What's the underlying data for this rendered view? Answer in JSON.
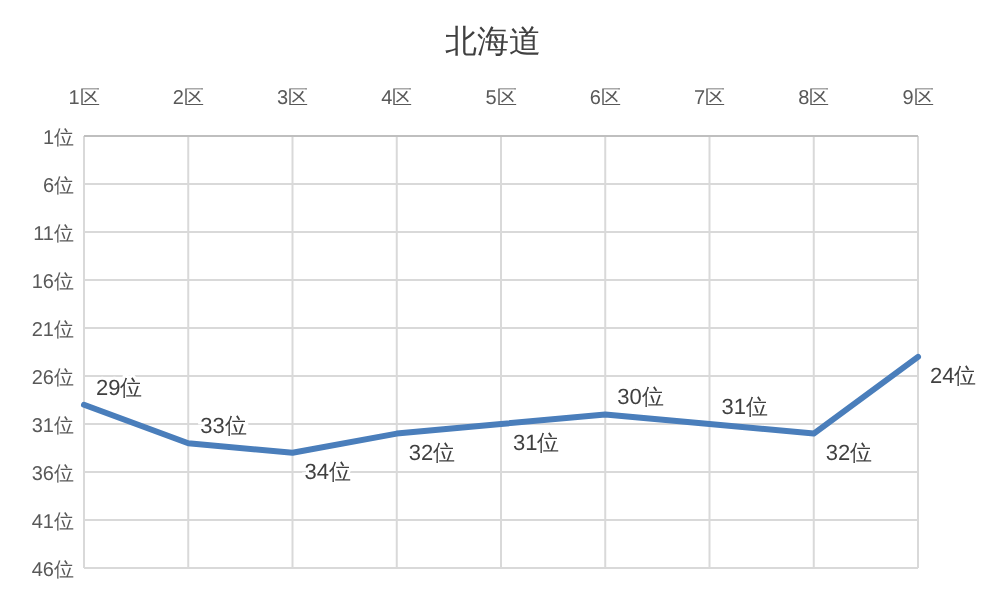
{
  "chart_data": {
    "type": "line",
    "title": "北海道",
    "categories": [
      "1区",
      "2区",
      "3区",
      "4区",
      "5区",
      "6区",
      "7区",
      "8区",
      "9区"
    ],
    "series": [
      {
        "color": "#4a7ebb",
        "values": [
          29,
          33,
          34,
          32,
          31,
          30,
          31,
          32,
          24
        ],
        "value_labels": [
          "29位",
          "33位",
          "34位",
          "32位",
          "31位",
          "30位",
          "31位",
          "32位",
          "24位"
        ]
      }
    ],
    "ylim": [
      46,
      1
    ],
    "yticks": [
      {
        "value": 1,
        "label": "1位"
      },
      {
        "value": 6,
        "label": "6位"
      },
      {
        "value": 11,
        "label": "11位"
      },
      {
        "value": 16,
        "label": "16位"
      },
      {
        "value": 21,
        "label": "21位"
      },
      {
        "value": 26,
        "label": "26位"
      },
      {
        "value": 31,
        "label": "31位"
      },
      {
        "value": 36,
        "label": "36位"
      },
      {
        "value": 41,
        "label": "41位"
      },
      {
        "value": 46,
        "label": "46位"
      }
    ],
    "grid": true,
    "marker": "none",
    "line_style": "solid"
  }
}
